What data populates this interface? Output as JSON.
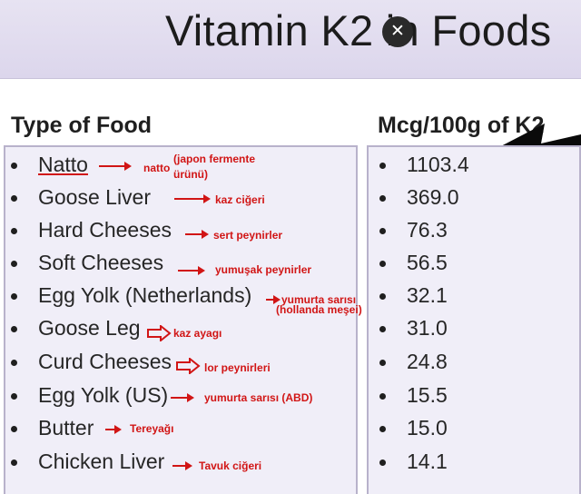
{
  "title": "Vitamin K2 in Foods",
  "close_icon": "close-icon",
  "left_header": "Type of Food",
  "right_header": "Mcg/100g of K2",
  "colors": {
    "annotation": "#d11515",
    "panel": "#f0eef8",
    "title_band": "#dcd6ec"
  },
  "rows": [
    {
      "food": "Natto",
      "note_line1": "natto",
      "note_line2": "(japon fermente",
      "note_line3": "ürünü)",
      "value": "1103.4"
    },
    {
      "food": "Goose Liver",
      "note_line1": "kaz ciğeri",
      "value": "369.0"
    },
    {
      "food": "Hard Cheeses",
      "note_line1": "sert peynirler",
      "value": "76.3"
    },
    {
      "food": "Soft Cheeses",
      "note_line1": "yumuşak peynirler",
      "value": "56.5"
    },
    {
      "food": "Egg Yolk (Netherlands)",
      "note_line1": "yumurta sarısı",
      "note_line2": "(hollanda meşei)",
      "value": "32.1"
    },
    {
      "food": "Goose Leg",
      "note_line1": "kaz ayagı",
      "value": "31.0"
    },
    {
      "food": "Curd Cheeses",
      "note_line1": "lor peynirleri",
      "value": "24.8"
    },
    {
      "food": "Egg Yolk (US)",
      "note_line1": "yumurta sarısı (ABD)",
      "value": "15.5"
    },
    {
      "food": "Butter",
      "note_line1": "Tereyağı",
      "value": "15.0"
    },
    {
      "food": "Chicken Liver",
      "note_line1": "Tavuk ciğeri",
      "value": "14.1"
    }
  ]
}
